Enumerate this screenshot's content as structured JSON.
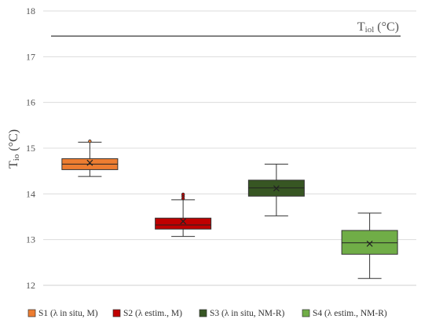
{
  "chart_data": {
    "type": "box",
    "ylabel": "Tio (°C)",
    "ylim": [
      12,
      18
    ],
    "yticks": [
      12,
      13,
      14,
      15,
      16,
      17,
      18
    ],
    "grid": true,
    "legend_position": "bottom",
    "reference_line": {
      "value": 17.45,
      "label": "Tiol (°C)",
      "color": "#666666"
    },
    "series": [
      {
        "name": "S1 (λ in situ, M)",
        "color": "#ed7d31",
        "whisker_low": 14.38,
        "q1": 14.53,
        "median": 14.65,
        "q3": 14.77,
        "whisker_high": 15.13,
        "mean": 14.68,
        "outliers": [
          15.15
        ]
      },
      {
        "name": "S2 (λ estim., M)",
        "color": "#c00000",
        "whisker_low": 13.07,
        "q1": 13.23,
        "median": 13.32,
        "q3": 13.47,
        "whisker_high": 13.87,
        "mean": 13.4,
        "outliers": [
          13.9,
          13.95,
          13.99
        ]
      },
      {
        "name": "S3 (λ in situ, NM-R)",
        "color": "#375623",
        "whisker_low": 13.52,
        "q1": 13.95,
        "median": 14.13,
        "q3": 14.3,
        "whisker_high": 14.65,
        "mean": 14.12,
        "outliers": []
      },
      {
        "name": "S4 (λ estim., NM-R)",
        "color": "#70ad47",
        "whisker_low": 12.15,
        "q1": 12.68,
        "median": 12.93,
        "q3": 13.2,
        "whisker_high": 13.58,
        "mean": 12.91,
        "outliers": []
      }
    ]
  }
}
